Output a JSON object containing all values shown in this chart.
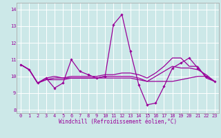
{
  "background_color": "#cce8e8",
  "grid_color": "#ffffff",
  "line_color": "#990099",
  "spine_color": "#aaaaaa",
  "xlim": [
    -0.5,
    23.5
  ],
  "ylim": [
    7.8,
    14.4
  ],
  "yticks": [
    8,
    9,
    10,
    11,
    12,
    13,
    14
  ],
  "xticks": [
    0,
    1,
    2,
    3,
    4,
    5,
    6,
    7,
    8,
    9,
    10,
    11,
    12,
    13,
    14,
    15,
    16,
    17,
    18,
    19,
    20,
    21,
    22,
    23
  ],
  "xlabel": "Windchill (Refroidissement éolien,°C)",
  "tick_fontsize": 5.0,
  "xlabel_fontsize": 5.5,
  "series": [
    [
      10.7,
      10.4,
      9.6,
      9.9,
      9.3,
      9.6,
      11.0,
      10.3,
      10.1,
      9.9,
      10.0,
      13.1,
      13.7,
      11.5,
      9.5,
      8.3,
      8.4,
      9.4,
      10.5,
      10.8,
      11.1,
      10.5,
      10.0,
      9.7
    ],
    [
      10.7,
      10.4,
      9.6,
      9.8,
      9.8,
      9.8,
      9.9,
      9.9,
      9.9,
      9.9,
      9.9,
      9.9,
      9.9,
      9.9,
      9.8,
      9.7,
      9.7,
      9.7,
      9.7,
      9.8,
      9.9,
      10.0,
      10.0,
      9.7
    ],
    [
      10.7,
      10.4,
      9.6,
      9.8,
      9.9,
      9.9,
      9.9,
      9.9,
      9.9,
      9.9,
      10.0,
      10.0,
      10.0,
      10.0,
      9.9,
      9.7,
      10.0,
      10.3,
      10.6,
      10.5,
      10.5,
      10.4,
      10.1,
      9.7
    ],
    [
      10.7,
      10.4,
      9.6,
      9.9,
      10.0,
      9.9,
      10.0,
      10.0,
      10.0,
      10.0,
      10.1,
      10.1,
      10.2,
      10.2,
      10.1,
      9.9,
      10.2,
      10.6,
      11.1,
      11.1,
      10.6,
      10.6,
      9.9,
      9.7
    ]
  ],
  "marker_series": 0,
  "marker": "D",
  "marker_size": 1.8,
  "linewidth": 0.9
}
